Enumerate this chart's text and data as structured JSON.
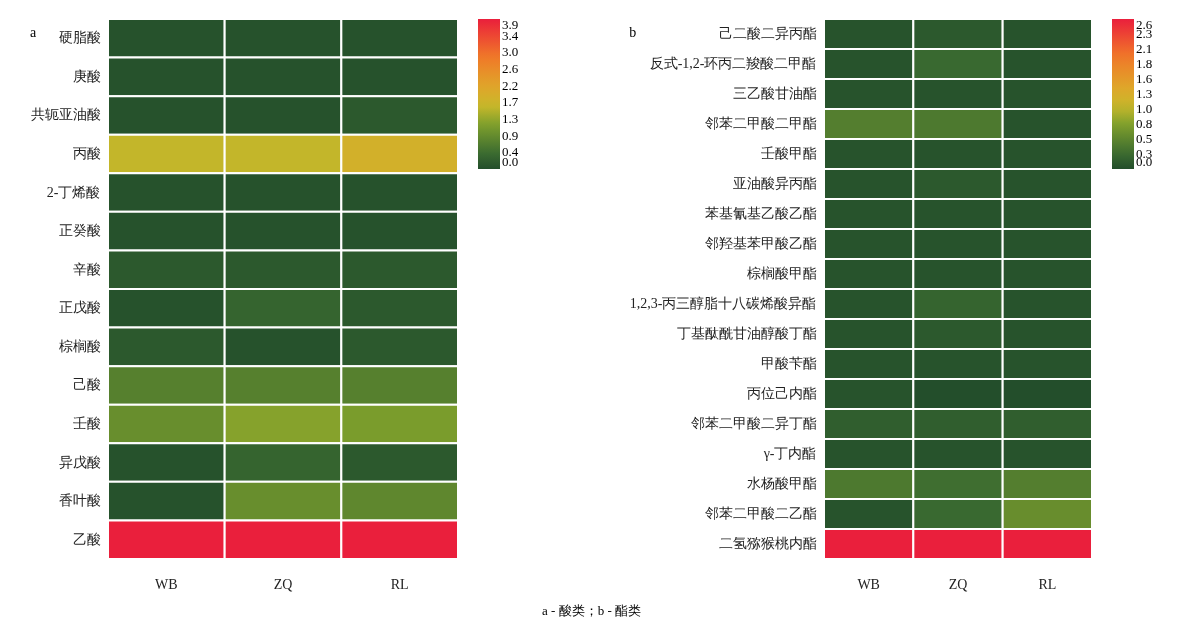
{
  "chart_data": [
    {
      "type": "heatmap",
      "title": "a",
      "categories": [
        "WB",
        "ZQ",
        "RL"
      ],
      "y_categories": [
        "硬脂酸",
        "庚酸",
        "共轭亚油酸",
        "丙酸",
        "2-丁烯酸",
        "正癸酸",
        "辛酸",
        "正戊酸",
        "棕榈酸",
        "己酸",
        "壬酸",
        "异戊酸",
        "香叶酸",
        "乙酸"
      ],
      "cells": [
        [
          0.05,
          0.05,
          0.05
        ],
        [
          0.05,
          0.05,
          0.05
        ],
        [
          0.05,
          0.05,
          0.15
        ],
        [
          1.6,
          1.6,
          1.85
        ],
        [
          0.05,
          0.05,
          0.05
        ],
        [
          0.05,
          0.05,
          0.05
        ],
        [
          0.15,
          0.15,
          0.15
        ],
        [
          0.05,
          0.3,
          0.15
        ],
        [
          0.15,
          0.05,
          0.15
        ],
        [
          0.7,
          0.7,
          0.7
        ],
        [
          0.9,
          1.2,
          1.1
        ],
        [
          0.05,
          0.3,
          0.15
        ],
        [
          0.05,
          0.9,
          0.8
        ],
        [
          3.88,
          3.88,
          3.88
        ]
      ],
      "clim": [
        0,
        3.88
      ],
      "cticks": [
        {
          "value": 0,
          "label": "0.0"
        },
        {
          "value": 0.431,
          "label": "0.4"
        },
        {
          "value": 0.862,
          "label": "0.9"
        },
        {
          "value": 1.293,
          "label": "1.3"
        },
        {
          "value": 1.724,
          "label": "1.7"
        },
        {
          "value": 2.156,
          "label": "2.2"
        },
        {
          "value": 2.587,
          "label": "2.6"
        },
        {
          "value": 3.018,
          "label": "3.0"
        },
        {
          "value": 3.449,
          "label": "3.4"
        },
        {
          "value": 3.88,
          "label": "3.9"
        }
      ],
      "annotations": [
        "a - 酸类；b - 酯类"
      ]
    },
    {
      "type": "heatmap",
      "title": "b",
      "categories": [
        "WB",
        "ZQ",
        "RL"
      ],
      "y_categories": [
        "己二酸二异丙酯",
        "反式-1,2-环丙二羧酸二甲酯",
        "三乙酸甘油酯",
        "邻苯二甲酸二甲酯",
        "壬酸甲酯",
        "亚油酸异丙酯",
        "苯基氰基乙酸乙酯",
        "邻羟基苯甲酸乙酯",
        "棕榈酸甲酯",
        "1,2,3-丙三醇脂十八碳烯酸异酯",
        "丁基酞酰甘油醇酸丁酯",
        "甲酸苄酯",
        "丙位己内酯",
        "邻苯二甲酸二异丁酯",
        "γ-丁内酯",
        "水杨酸甲酯",
        "邻苯二甲酸二乙酯",
        "二氢猕猴桃内酯"
      ],
      "cells": [
        [
          0.05,
          0.1,
          0.05
        ],
        [
          0.05,
          0.25,
          0.05
        ],
        [
          0.05,
          0.05,
          0.05
        ],
        [
          0.45,
          0.4,
          0.05
        ],
        [
          0.05,
          0.05,
          0.05
        ],
        [
          0.05,
          0.1,
          0.05
        ],
        [
          0.05,
          0.05,
          0.05
        ],
        [
          0.05,
          0.05,
          0.05
        ],
        [
          0.05,
          0.05,
          0.05
        ],
        [
          0.05,
          0.2,
          0.05
        ],
        [
          0.05,
          0.1,
          0.05
        ],
        [
          0.05,
          0.05,
          0.05
        ],
        [
          0.05,
          0.0,
          0.0
        ],
        [
          0.15,
          0.15,
          0.15
        ],
        [
          0.05,
          0.05,
          0.05
        ],
        [
          0.4,
          0.3,
          0.45
        ],
        [
          0.05,
          0.25,
          0.6
        ],
        [
          2.6,
          2.6,
          2.6
        ]
      ],
      "clim": [
        0,
        2.6
      ],
      "cticks": [
        {
          "value": 0,
          "label": "0.0"
        },
        {
          "value": 0.26,
          "label": "0.3"
        },
        {
          "value": 0.52,
          "label": "0.5"
        },
        {
          "value": 0.78,
          "label": "0.8"
        },
        {
          "value": 1.04,
          "label": "1.0"
        },
        1.3,
        {
          "value": 1.56,
          "label": "1.6"
        },
        {
          "value": 1.82,
          "label": "1.8"
        },
        {
          "value": 2.08,
          "label": "2.1"
        },
        {
          "value": 2.34,
          "label": "2.3"
        },
        2.6
      ]
    }
  ]
}
